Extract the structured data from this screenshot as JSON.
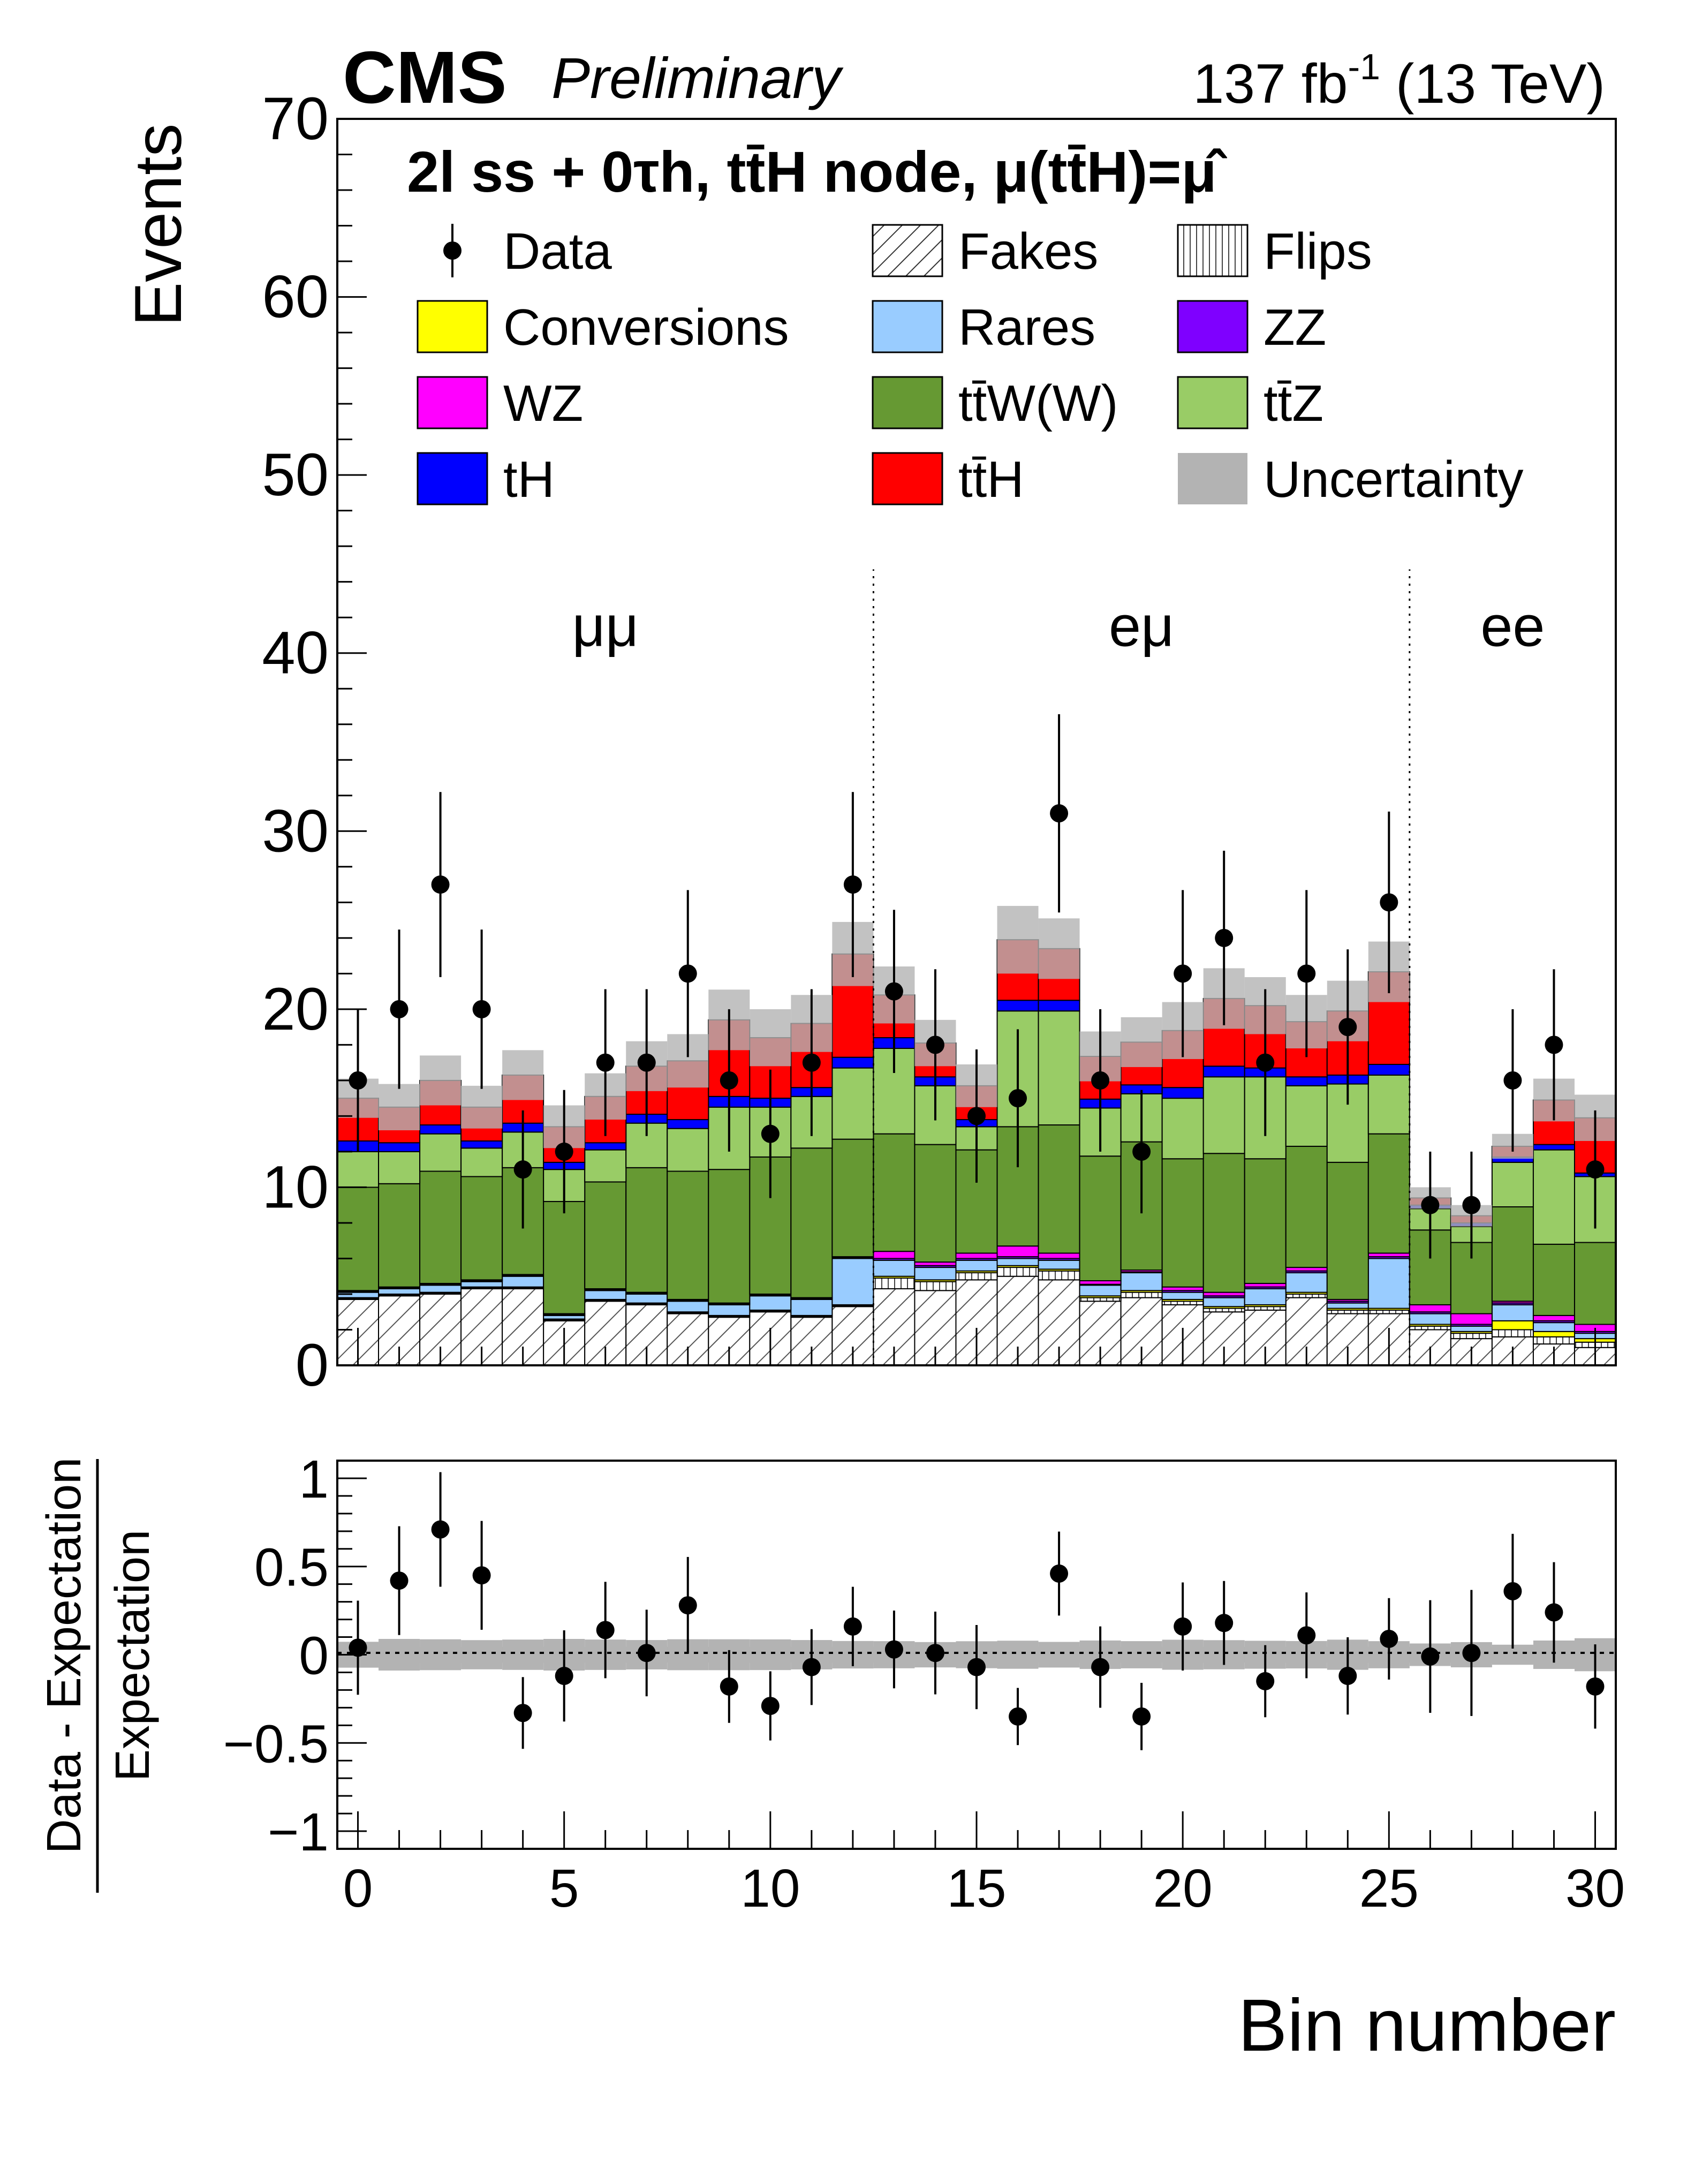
{
  "header": {
    "experiment": "CMS",
    "status": "Preliminary",
    "lumi": "137 fb",
    "lumi_exp": "-1",
    "energy": " (13 TeV)",
    "category": "2l ss + 0τh, tt̄H node, μ(tt̄H)=μ̂"
  },
  "legend": [
    {
      "label": "Data",
      "kind": "marker",
      "color": "#000000"
    },
    {
      "label": "Fakes",
      "kind": "hatch",
      "color": "#ffffff"
    },
    {
      "label": "Flips",
      "kind": "vhatch",
      "color": "#ffffff"
    },
    {
      "label": "Conversions",
      "kind": "fill",
      "color": "#ffff00"
    },
    {
      "label": "Rares",
      "kind": "fill",
      "color": "#99ccff"
    },
    {
      "label": "ZZ",
      "kind": "fill",
      "color": "#7f00ff"
    },
    {
      "label": "WZ",
      "kind": "fill",
      "color": "#ff00ff"
    },
    {
      "label": "tt̄W(W)",
      "kind": "fill",
      "color": "#669933"
    },
    {
      "label": "tt̄Z",
      "kind": "fill",
      "color": "#99cc66"
    },
    {
      "label": "tH",
      "kind": "fill",
      "color": "#0000ff"
    },
    {
      "label": "tt̄H",
      "kind": "fill",
      "color": "#ff0000"
    },
    {
      "label": "Uncertainty",
      "kind": "fill",
      "color": "#b3b3b3"
    }
  ],
  "channels": [
    {
      "label": "μμ",
      "from": 0,
      "to": 13
    },
    {
      "label": "eμ",
      "from": 13,
      "to": 26
    },
    {
      "label": "ee",
      "from": 26,
      "to": 31
    }
  ],
  "chart_data": [
    {
      "type": "bar",
      "stacked": true,
      "title": "2l ss + 0τh, tt̄H node",
      "xlabel": "Bin number",
      "ylabel": "Events",
      "xlim": [
        -0.5,
        30.5
      ],
      "ylim": [
        0,
        70
      ],
      "yticks": [
        0,
        10,
        20,
        30,
        40,
        50,
        60,
        70
      ],
      "x": [
        0,
        1,
        2,
        3,
        4,
        5,
        6,
        7,
        8,
        9,
        10,
        11,
        12,
        13,
        14,
        15,
        16,
        17,
        18,
        19,
        20,
        21,
        22,
        23,
        24,
        25,
        26,
        27,
        28,
        29,
        30
      ],
      "series": [
        {
          "name": "Fakes",
          "color": "#ffffff",
          "values": [
            3.7,
            3.9,
            4.0,
            4.3,
            4.3,
            2.5,
            3.6,
            3.4,
            2.9,
            2.7,
            3.0,
            2.7,
            3.3,
            4.3,
            4.2,
            4.8,
            5.0,
            4.8,
            3.6,
            3.8,
            3.4,
            3.0,
            3.1,
            3.8,
            2.9,
            2.9,
            2.0,
            1.5,
            1.6,
            1.2,
            1.0
          ]
        },
        {
          "name": "Flips",
          "color": "#ffffff",
          "values": [
            0.05,
            0.05,
            0.05,
            0.05,
            0.05,
            0.05,
            0.05,
            0.05,
            0.05,
            0.05,
            0.05,
            0.05,
            0.05,
            0.6,
            0.5,
            0.4,
            0.5,
            0.5,
            0.2,
            0.3,
            0.2,
            0.2,
            0.2,
            0.2,
            0.2,
            0.2,
            0.2,
            0.3,
            0.4,
            0.4,
            0.3
          ]
        },
        {
          "name": "Conversions",
          "color": "#ffff00",
          "values": [
            0.05,
            0.05,
            0.05,
            0.05,
            0.05,
            0.05,
            0.05,
            0.05,
            0.05,
            0.05,
            0.05,
            0.05,
            0.05,
            0.1,
            0.1,
            0.1,
            0.1,
            0.1,
            0.1,
            0.1,
            0.1,
            0.1,
            0.1,
            0.1,
            0.1,
            0.1,
            0.1,
            0.1,
            0.5,
            0.3,
            0.2
          ]
        },
        {
          "name": "Rares",
          "color": "#99ccff",
          "values": [
            0.3,
            0.3,
            0.4,
            0.3,
            0.6,
            0.2,
            0.5,
            0.5,
            0.6,
            0.6,
            0.8,
            0.9,
            2.6,
            0.9,
            0.7,
            0.6,
            0.4,
            0.5,
            0.6,
            1.0,
            0.4,
            0.5,
            0.9,
            1.1,
            0.3,
            2.8,
            0.6,
            0.3,
            0.9,
            0.5,
            0.3
          ]
        },
        {
          "name": "ZZ",
          "color": "#7f00ff",
          "values": [
            0.05,
            0.05,
            0.05,
            0.05,
            0.05,
            0.05,
            0.05,
            0.05,
            0.05,
            0.05,
            0.05,
            0.05,
            0.05,
            0.1,
            0.1,
            0.1,
            0.1,
            0.1,
            0.05,
            0.05,
            0.1,
            0.1,
            0.1,
            0.1,
            0.1,
            0.1,
            0.1,
            0.1,
            0.1,
            0.1,
            0.1
          ]
        },
        {
          "name": "WZ",
          "color": "#ff00ff",
          "values": [
            0.05,
            0.05,
            0.05,
            0.05,
            0.05,
            0.05,
            0.05,
            0.05,
            0.05,
            0.05,
            0.05,
            0.05,
            0.05,
            0.4,
            0.2,
            0.3,
            0.6,
            0.3,
            0.2,
            0.1,
            0.2,
            0.2,
            0.2,
            0.2,
            0.1,
            0.2,
            0.4,
            0.6,
            0.1,
            0.3,
            0.4
          ]
        },
        {
          "name": "tt̄W(W)",
          "color": "#669933",
          "values": [
            5.8,
            5.8,
            6.3,
            5.8,
            6.0,
            6.3,
            6.0,
            7.0,
            7.2,
            7.5,
            7.7,
            8.4,
            6.6,
            6.6,
            6.6,
            5.8,
            6.7,
            7.2,
            7.0,
            7.2,
            7.2,
            7.8,
            7.0,
            6.8,
            7.7,
            6.7,
            4.2,
            4.0,
            5.3,
            4.0,
            4.6
          ]
        },
        {
          "name": "tt̄Z",
          "color": "#99cc66",
          "values": [
            2.0,
            1.8,
            2.1,
            1.6,
            2.0,
            1.8,
            1.8,
            2.5,
            2.4,
            3.5,
            2.8,
            2.9,
            4.0,
            4.8,
            3.3,
            1.3,
            6.5,
            6.4,
            2.7,
            2.7,
            3.4,
            4.3,
            4.6,
            3.4,
            4.4,
            3.3,
            1.2,
            0.9,
            2.5,
            5.3,
            3.7
          ]
        },
        {
          "name": "tH",
          "color": "#0000ff",
          "values": [
            0.6,
            0.5,
            0.5,
            0.4,
            0.5,
            0.4,
            0.4,
            0.5,
            0.5,
            0.6,
            0.5,
            0.5,
            0.6,
            0.6,
            0.5,
            0.4,
            0.6,
            0.6,
            0.5,
            0.5,
            0.6,
            0.6,
            0.5,
            0.5,
            0.5,
            0.6,
            0.2,
            0.2,
            0.3,
            0.3,
            0.2
          ]
        },
        {
          "name": "tt̄H",
          "color": "#ff0000",
          "values": [
            2.4,
            2.0,
            2.5,
            1.9,
            2.7,
            2.0,
            2.6,
            2.7,
            3.3,
            4.3,
            3.4,
            3.6,
            5.8,
            2.4,
            1.9,
            1.9,
            3.4,
            2.9,
            2.4,
            2.4,
            3.2,
            3.8,
            3.5,
            3.1,
            3.6,
            5.2,
            0.4,
            0.4,
            0.6,
            2.5,
            3.1
          ]
        }
      ],
      "uncertainty": {
        "name": "Uncertainty",
        "color": "#b3b3b3",
        "values": [
          1.1,
          1.3,
          1.4,
          1.2,
          1.4,
          1.2,
          1.3,
          1.4,
          1.5,
          1.7,
          1.6,
          1.6,
          1.8,
          1.6,
          1.3,
          1.2,
          1.9,
          1.7,
          1.4,
          1.4,
          1.6,
          1.7,
          1.6,
          1.5,
          1.7,
          1.7,
          0.6,
          0.6,
          0.7,
          1.2,
          1.3
        ]
      },
      "data": {
        "name": "Data",
        "color": "#000000",
        "values": [
          16,
          20,
          27,
          20,
          11,
          12,
          17,
          17,
          22,
          16,
          13,
          17,
          27,
          21,
          18,
          14,
          15,
          31,
          16,
          12,
          22,
          24,
          17,
          22,
          19,
          26,
          9,
          9,
          16,
          18,
          11
        ]
      }
    },
    {
      "type": "scatter",
      "xlabel": "Bin number",
      "ylabel": "Data - Expectation / Expectation",
      "ylabel_num": "Data - Expectation",
      "ylabel_den": "Expectation",
      "xlim": [
        -0.5,
        30.5
      ],
      "ylim": [
        -1.1,
        1.1
      ],
      "yticks": [
        -1,
        -0.5,
        0,
        0.5,
        1
      ],
      "yticklabels": [
        "−1",
        "−0.5",
        "0",
        "0.5",
        "1"
      ],
      "xticks": [
        0,
        5,
        10,
        15,
        20,
        25,
        30
      ],
      "x": [
        0,
        1,
        2,
        3,
        4,
        5,
        6,
        7,
        8,
        9,
        10,
        11,
        12,
        13,
        14,
        15,
        16,
        17,
        18,
        19,
        20,
        21,
        22,
        23,
        24,
        25,
        26,
        27,
        28,
        29,
        30
      ],
      "values": [
        0.04,
        0.42,
        0.71,
        0.45,
        -0.33,
        -0.12,
        0.14,
        0.01,
        0.28,
        -0.18,
        -0.29,
        -0.07,
        0.16,
        0.03,
        0.01,
        -0.07,
        -0.35,
        0.46,
        -0.07,
        -0.35,
        0.16,
        0.18,
        -0.15,
        0.11,
        -0.12,
        0.09,
        -0.01,
        0.01,
        0.36,
        0.24,
        -0.18
      ],
      "unc_band": 0.1
    }
  ]
}
